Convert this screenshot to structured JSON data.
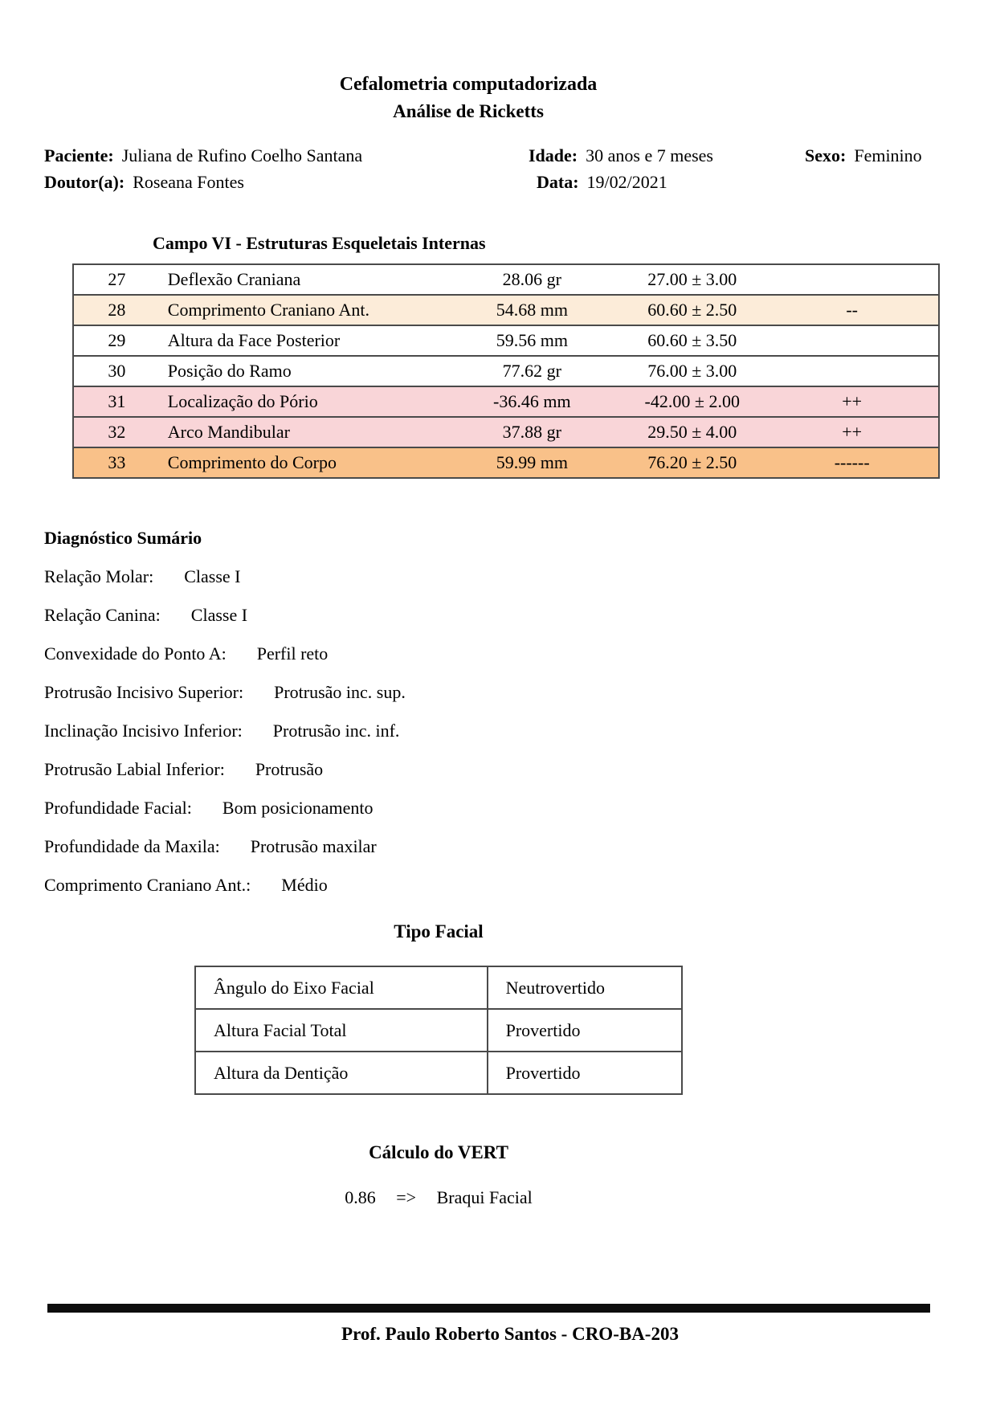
{
  "doc": {
    "title": "Cefalometria computadorizada",
    "subtitle": "Análise de Ricketts",
    "patient": {
      "label": "Paciente:",
      "value": "Juliana de Rufino Coelho Santana"
    },
    "age": {
      "label": "Idade:",
      "value": "30 anos e 7 meses"
    },
    "sex": {
      "label": "Sexo:",
      "value": "Feminino"
    },
    "doctor": {
      "label": "Doutor(a):",
      "value": "Roseana Fontes"
    },
    "date": {
      "label": "Data:",
      "value": "19/02/2021"
    }
  },
  "campo_table": {
    "title": "Campo VI - Estruturas Esqueletais Internas",
    "rows": [
      {
        "num": "27",
        "name": "Deflexão Craniana",
        "value": "28.06 gr",
        "norm": "27.00 ± 3.00",
        "flag": "",
        "bg": "white"
      },
      {
        "num": "28",
        "name": "Comprimento Craniano Ant.",
        "value": "54.68 mm",
        "norm": "60.60 ± 2.50",
        "flag": "--",
        "bg": "peach"
      },
      {
        "num": "29",
        "name": "Altura da Face Posterior",
        "value": "59.56 mm",
        "norm": "60.60 ± 3.50",
        "flag": "",
        "bg": "white"
      },
      {
        "num": "30",
        "name": "Posição do Ramo",
        "value": "77.62 gr",
        "norm": "76.00 ± 3.00",
        "flag": "",
        "bg": "white"
      },
      {
        "num": "31",
        "name": "Localização do Pório",
        "value": "-36.46 mm",
        "norm": "-42.00 ± 2.00",
        "flag": "++",
        "bg": "pink"
      },
      {
        "num": "32",
        "name": "Arco Mandibular",
        "value": "37.88 gr",
        "norm": "29.50 ± 4.00",
        "flag": "++",
        "bg": "pink"
      },
      {
        "num": "33",
        "name": "Comprimento do Corpo",
        "value": "59.99 mm",
        "norm": "76.20 ± 2.50",
        "flag": "------",
        "bg": "orange"
      }
    ]
  },
  "diagnosis": {
    "title": "Diagnóstico Sumário",
    "items": [
      {
        "label": "Relação Molar:",
        "value": "Classe I"
      },
      {
        "label": "Relação Canina:",
        "value": "Classe I"
      },
      {
        "label": "Convexidade do Ponto A:",
        "value": "Perfil reto"
      },
      {
        "label": "Protrusão Incisivo Superior:",
        "value": "Protrusão inc. sup."
      },
      {
        "label": "Inclinação Incisivo Inferior:",
        "value": "Protrusão inc. inf."
      },
      {
        "label": "Protrusão Labial Inferior:",
        "value": "Protrusão"
      },
      {
        "label": "Profundidade Facial:",
        "value": "Bom posicionamento"
      },
      {
        "label": "Profundidade da Maxila:",
        "value": "Protrusão maxilar"
      },
      {
        "label": "Comprimento Craniano Ant.:",
        "value": "Médio"
      }
    ]
  },
  "facial": {
    "title": "Tipo Facial",
    "rows": [
      {
        "label": "Ângulo do Eixo Facial",
        "value": "Neutrovertido"
      },
      {
        "label": "Altura Facial Total",
        "value": "Provertido"
      },
      {
        "label": "Altura da Dentição",
        "value": "Provertido"
      }
    ]
  },
  "vert": {
    "title": "Cálculo do VERT",
    "value": "0.86",
    "arrow": "=>",
    "result": "Braqui Facial"
  },
  "footer": {
    "text": "Prof. Paulo Roberto Santos - CRO-BA-203"
  },
  "colors": {
    "white": "#ffffff",
    "peach": "#fcecd9",
    "pink": "#f9d5d8",
    "orange": "#f9c189",
    "border": "#4a4a4a"
  }
}
